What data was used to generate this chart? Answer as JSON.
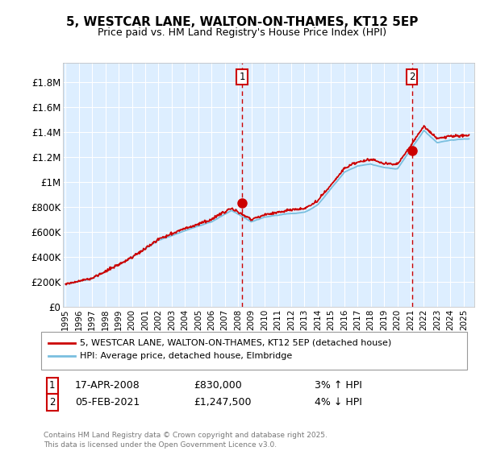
{
  "title": "5, WESTCAR LANE, WALTON-ON-THAMES, KT12 5EP",
  "subtitle": "Price paid vs. HM Land Registry's House Price Index (HPI)",
  "ylabel_ticks": [
    "£0",
    "£200K",
    "£400K",
    "£600K",
    "£800K",
    "£1M",
    "£1.2M",
    "£1.4M",
    "£1.6M",
    "£1.8M"
  ],
  "ylabel_values": [
    0,
    200000,
    400000,
    600000,
    800000,
    1000000,
    1200000,
    1400000,
    1600000,
    1800000
  ],
  "ylim": [
    0,
    1950000
  ],
  "xlim_start": 1994.8,
  "xlim_end": 2025.8,
  "sale1_date": 2008.29,
  "sale1_price": 830000,
  "sale1_label": "1",
  "sale2_date": 2021.09,
  "sale2_price": 1247500,
  "sale2_label": "2",
  "hpi_color": "#7abfdf",
  "price_color": "#cc0000",
  "legend_line1": "5, WESTCAR LANE, WALTON-ON-THAMES, KT12 5EP (detached house)",
  "legend_line2": "HPI: Average price, detached house, Elmbridge",
  "annotation1_date": "17-APR-2008",
  "annotation1_price": "£830,000",
  "annotation1_hpi": "3% ↑ HPI",
  "annotation2_date": "05-FEB-2021",
  "annotation2_price": "£1,247,500",
  "annotation2_hpi": "4% ↓ HPI",
  "footer": "Contains HM Land Registry data © Crown copyright and database right 2025.\nThis data is licensed under the Open Government Licence v3.0.",
  "plot_bg_color": "#ddeeff",
  "grid_color": "#ffffff",
  "x_ticks": [
    1995,
    1996,
    1997,
    1998,
    1999,
    2000,
    2001,
    2002,
    2003,
    2004,
    2005,
    2006,
    2007,
    2008,
    2009,
    2010,
    2011,
    2012,
    2013,
    2014,
    2015,
    2016,
    2017,
    2018,
    2019,
    2020,
    2021,
    2022,
    2023,
    2024,
    2025
  ]
}
